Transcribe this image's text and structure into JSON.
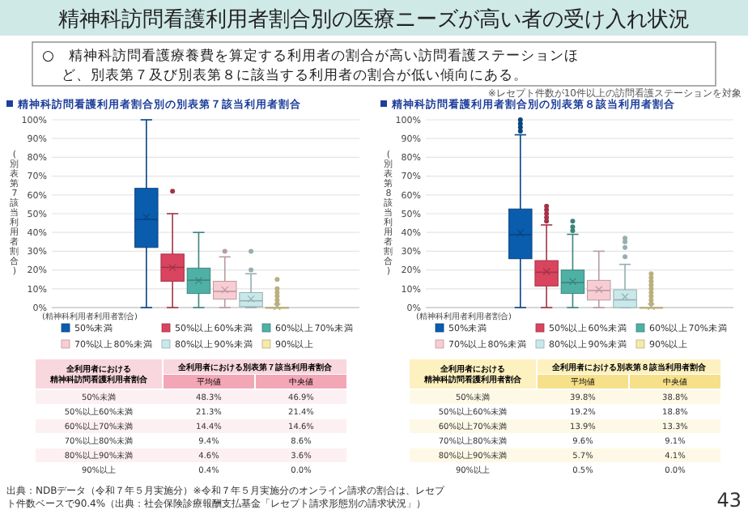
{
  "chart_data": [
    {
      "type": "box",
      "title": "精神科訪問看護利用者割合別の別表第７該当利用者割合",
      "ylabel": "(別表第7該当利用者割合)",
      "xlabel": "(精神科利用者利用者割合)",
      "categories": [
        null
      ],
      "ylim": [
        0,
        100
      ],
      "yticks": [
        {
          "value": 0,
          "label": "0%"
        },
        {
          "value": 10,
          "label": "10%"
        },
        {
          "value": 20,
          "label": "20%"
        },
        {
          "value": 30,
          "label": "30%"
        },
        {
          "value": 40,
          "label": "40%"
        },
        {
          "value": 50,
          "label": "50%"
        },
        {
          "value": 60,
          "label": "60%"
        },
        {
          "value": 70,
          "label": "70%"
        },
        {
          "value": 80,
          "label": "80%"
        },
        {
          "value": 90,
          "label": "90%"
        },
        {
          "value": 100,
          "label": "100%"
        }
      ],
      "grid": "y",
      "legend": "bottom",
      "tick_labels": "y",
      "series": [
        {
          "name": "50%未満",
          "color": "#0a5cad",
          "boxes": [
            {
              "low": 0,
              "q1": 32,
              "median": 46.9,
              "q3": 63.5,
              "high": 100,
              "mean": 48.3
            }
          ]
        },
        {
          "name": "50%以上60%未満",
          "color": "#d9445f",
          "boxes": [
            {
              "low": 0,
              "q1": 14,
              "median": 21.4,
              "q3": 28.5,
              "high": 50,
              "mean": 21.3,
              "outliers": [
                62
              ]
            }
          ]
        },
        {
          "name": "60%以上70%未満",
          "color": "#4fb0a5",
          "boxes": [
            {
              "low": 0,
              "q1": 7.5,
              "median": 14.6,
              "q3": 21,
              "high": 40,
              "mean": 14.4
            }
          ]
        },
        {
          "name": "70%以上80%未満",
          "color": "#f7cdd3",
          "boxes": [
            {
              "low": 0,
              "q1": 4.5,
              "median": 8.6,
              "q3": 14,
              "high": 27,
              "mean": 9.4,
              "outliers": [
                30
              ]
            }
          ]
        },
        {
          "name": "80%以上90%未満",
          "color": "#c9e8ea",
          "boxes": [
            {
              "low": 0,
              "q1": 0.5,
              "median": 3.6,
              "q3": 8,
              "high": 18,
              "mean": 4.6,
              "outliers": [
                20,
                30
              ]
            }
          ]
        },
        {
          "name": "90%以上",
          "color": "#f7e9a8",
          "boxes": [
            {
              "low": 0,
              "q1": 0,
              "median": 0,
              "q3": 0,
              "high": 0,
              "mean": 0.4,
              "outliers": [
                2,
                4,
                6,
                8,
                10,
                15
              ]
            }
          ]
        }
      ],
      "annotations": [
        "全利用者における",
        "精神科訪問看護利用者割合",
        "全利用者における別表第７該当利用者割合",
        "平均値",
        "中央値",
        "50%未満",
        "48.3%",
        "46.9%",
        "50%以上60%未満",
        "21.3%",
        "21.4%",
        "60%以上70%未満",
        "14.4%",
        "14.6%",
        "70%以上80%未満",
        "9.4%",
        "8.6%",
        "80%以上90%未満",
        "4.6%",
        "3.6%",
        "90%以上",
        "0.4%",
        "0.0%"
      ]
    },
    {
      "type": "box",
      "title": "精神科訪問看護利用者割合別の別表第８該当利用者割合",
      "ylabel": "(別表第8該当利用者割合)",
      "xlabel": "(精神科利用者利用者割合)",
      "categories": [
        null
      ],
      "ylim": [
        0,
        100
      ],
      "yticks": [
        {
          "value": 0,
          "label": "0%"
        },
        {
          "value": 10,
          "label": "10%"
        },
        {
          "value": 20,
          "label": "20%"
        },
        {
          "value": 30,
          "label": "30%"
        },
        {
          "value": 40,
          "label": "40%"
        },
        {
          "value": 50,
          "label": "50%"
        },
        {
          "value": 60,
          "label": "60%"
        },
        {
          "value": 70,
          "label": "70%"
        },
        {
          "value": 80,
          "label": "80%"
        },
        {
          "value": 90,
          "label": "90%"
        },
        {
          "value": 100,
          "label": "100%"
        }
      ],
      "grid": "y",
      "legend": "bottom",
      "tick_labels": "y",
      "series": [
        {
          "name": "50%未満",
          "color": "#0a5cad",
          "boxes": [
            {
              "low": 0,
              "q1": 26,
              "median": 38.8,
              "q3": 52.5,
              "high": 92,
              "mean": 39.8,
              "outliers": [
                94,
                96,
                98,
                100
              ]
            }
          ]
        },
        {
          "name": "50%以上60%未満",
          "color": "#d9445f",
          "boxes": [
            {
              "low": 0,
              "q1": 11.5,
              "median": 18.8,
              "q3": 25,
              "high": 44,
              "mean": 19.2,
              "outliers": [
                46,
                48,
                50,
                52,
                54
              ]
            }
          ]
        },
        {
          "name": "60%以上70%未満",
          "color": "#4fb0a5",
          "boxes": [
            {
              "low": 0,
              "q1": 7.5,
              "median": 13.3,
              "q3": 20,
              "high": 39,
              "mean": 13.9,
              "outliers": [
                41,
                43,
                46
              ]
            }
          ]
        },
        {
          "name": "70%以上80%未満",
          "color": "#f7cdd3",
          "boxes": [
            {
              "low": 0,
              "q1": 4,
              "median": 9.1,
              "q3": 14.5,
              "high": 30,
              "mean": 9.6
            }
          ]
        },
        {
          "name": "80%以上90%未満",
          "color": "#c9e8ea",
          "boxes": [
            {
              "low": 0,
              "q1": 0,
              "median": 4.1,
              "q3": 9.5,
              "high": 23,
              "mean": 5.7,
              "outliers": [
                27,
                32,
                35,
                37
              ]
            }
          ]
        },
        {
          "name": "90%以上",
          "color": "#f7e9a8",
          "boxes": [
            {
              "low": 0,
              "q1": 0,
              "median": 0,
              "q3": 0,
              "high": 0,
              "mean": 0.5,
              "outliers": [
                2,
                4,
                6,
                8,
                10,
                12,
                14,
                16,
                18
              ]
            }
          ]
        }
      ],
      "annotations": [
        "全利用者における",
        "精神科訪問看護利用者割合",
        "全利用者における別表第８該当利用者割合",
        "平均値",
        "中央値",
        "50%未満",
        "39.8%",
        "38.8%",
        "50%以上60%未満",
        "19.2%",
        "18.8%",
        "60%以上70%未満",
        "13.9%",
        "13.3%",
        "70%以上80%未満",
        "9.6%",
        "9.1%",
        "80%以上90%未満",
        "5.7%",
        "4.1%",
        "90%以上",
        "0.5%",
        "0.0%"
      ]
    },
    {
      "type": "other",
      "title": "精神科訪問看護利用者割合別の医療ニーズが高い者の受け入れ状況",
      "subtitle": "○　精神科訪問看護療養費を算定する利用者の割合が高い訪問看護ステーションほど、別表第７及び別表第８に該当する利用者の割合が低い傾向にある。",
      "annotations": [
        "※レセプト件数が10件以上の訪問看護ステーションを対象",
        "出典：NDBデータ（令和７年５月実施分）※令和７年５月実施分のオンライン請求の割合は、レセプト件数ベースで90.4%（出典：社会保険診療報酬支払基金「レセプト請求形態別の請求状況」）",
        "43"
      ]
    }
  ]
}
